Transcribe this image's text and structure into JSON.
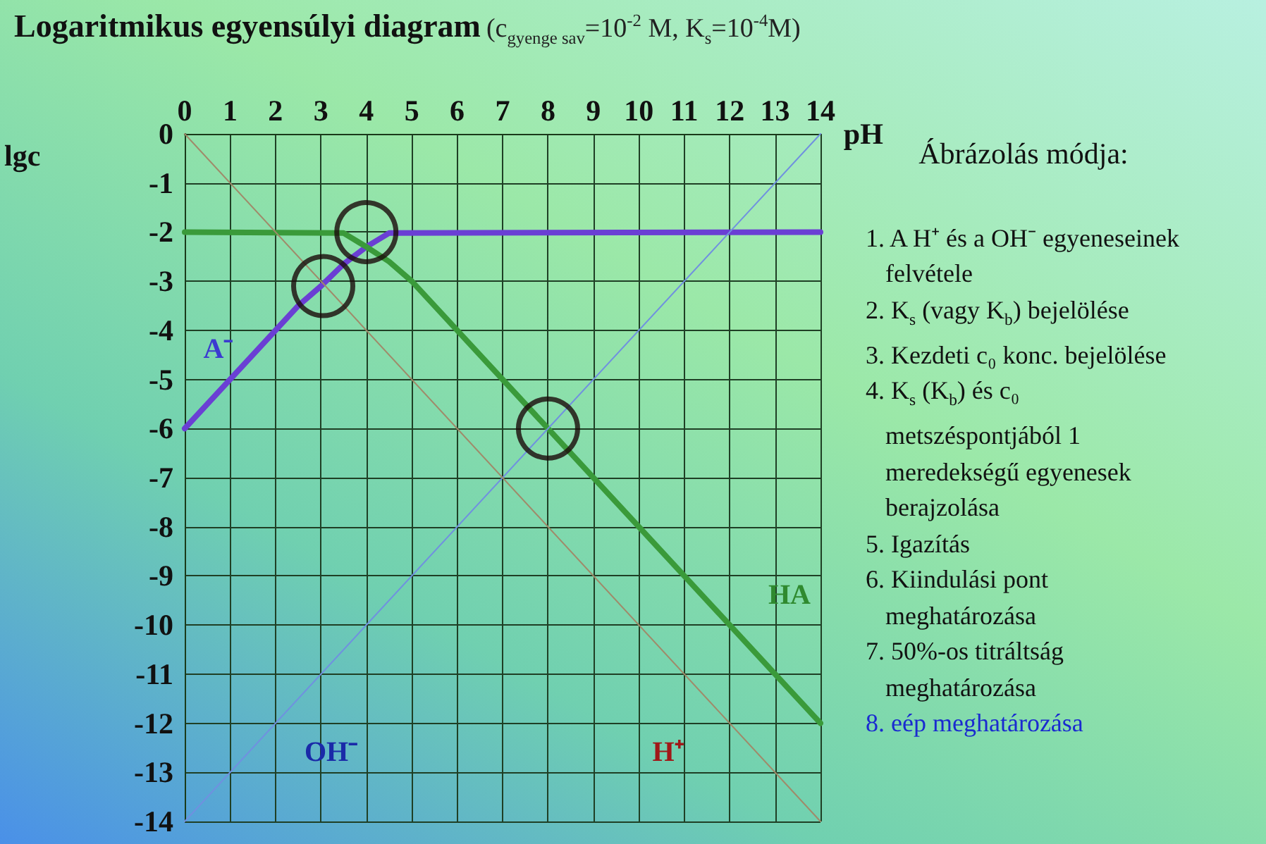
{
  "chart_data": {
    "type": "line",
    "title": "Logaritmikus egyensúlyi diagram",
    "subtitle": "(c$_{gyenge sav}$=10$^{-2}$ M, K$_{s}$=10$^{-4}$M)",
    "xlabel": "pH",
    "ylabel": "lgc",
    "xlim": [
      0,
      14
    ],
    "xticks": [
      0,
      1,
      2,
      3,
      4,
      5,
      6,
      7,
      8,
      9,
      10,
      11,
      12,
      13,
      14
    ],
    "ylim": [
      -14,
      0
    ],
    "yticks": [
      0,
      -1,
      -2,
      -3,
      -4,
      -5,
      -6,
      -7,
      -8,
      -9,
      -10,
      -11,
      -12,
      -13,
      -14
    ],
    "grid": true,
    "legend": false,
    "marker": "none",
    "line_style": "solid",
    "series": [
      {
        "name": "A⁻",
        "color": "#6a3fd4",
        "x": [
          0,
          2.5,
          3,
          3.5,
          4,
          4.5,
          14
        ],
        "values": [
          -6,
          -3.5,
          -3.1,
          -2.65,
          -2.3,
          -2.02,
          -2
        ]
      },
      {
        "name": "HA",
        "color": "#3a9a3a",
        "x": [
          0,
          3.5,
          4,
          4.5,
          5,
          14
        ],
        "values": [
          -2,
          -2.02,
          -2.3,
          -2.6,
          -3,
          -12
        ]
      },
      {
        "name": "OH⁻",
        "color": "#7090e0",
        "x": [
          0,
          14
        ],
        "values": [
          -14,
          0
        ]
      },
      {
        "name": "H⁺",
        "color": "#a08a6a",
        "x": [
          0,
          14
        ],
        "values": [
          0,
          -14
        ]
      },
      {
        "type": "scatter",
        "marker": "circle",
        "color": "#1a0a0a",
        "x": [
          3.05,
          4,
          8
        ],
        "values": [
          -3.1,
          -2,
          -6
        ]
      }
    ],
    "annotations": [
      "Ábrázolás módja:",
      "1. A H⁺ és a OH⁻ egyeneseinek felvétele",
      "2. K$_{s}$ (vagy K$_{b}$) bejelölése",
      "3. Kezdeti c₀ konc. bejelölése",
      "4. K$_{s}$ (K$_{b}$) és c₀ metszéspontjából 1 meredekségű egyenesek berajzolása",
      "5. Igazítás",
      "6. Kiindulási pont meghatározása",
      "7. 50%-os titráltság meghatározása",
      "8. eép meghatározása"
    ]
  }
}
